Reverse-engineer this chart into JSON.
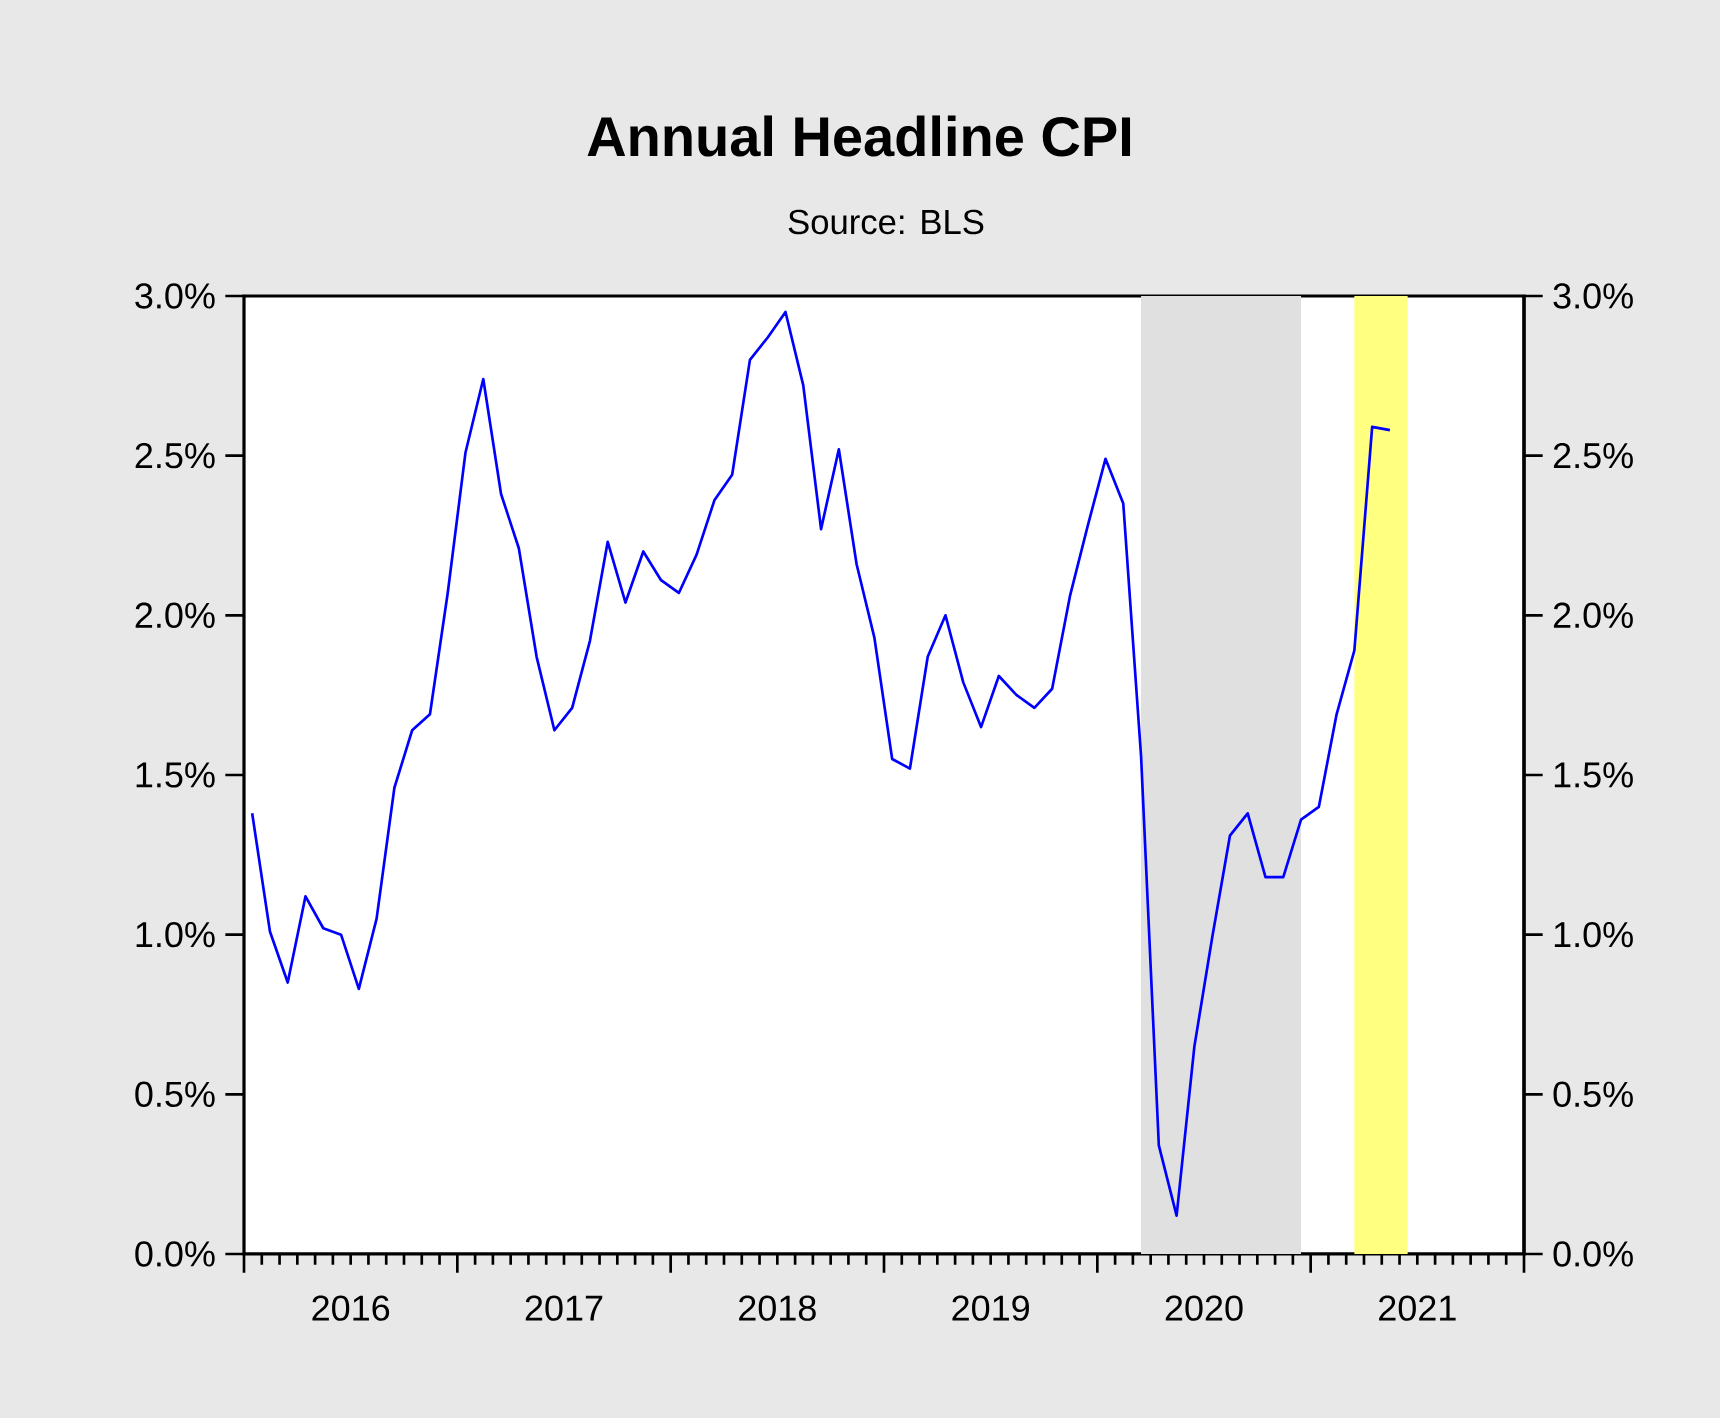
{
  "chart_data": {
    "type": "line",
    "title": "Annual Headline CPI",
    "annotations": [
      "Source: BLS"
    ],
    "x": [
      "2016-01-15",
      "2016-02-15",
      "2016-03-15",
      "2016-04-15",
      "2016-05-15",
      "2016-06-15",
      "2016-07-15",
      "2016-08-15",
      "2016-09-15",
      "2016-10-15",
      "2016-11-15",
      "2016-12-15",
      "2017-01-15",
      "2017-02-15",
      "2017-03-15",
      "2017-04-15",
      "2017-05-15",
      "2017-06-15",
      "2017-07-15",
      "2017-08-15",
      "2017-09-15",
      "2017-10-15",
      "2017-11-15",
      "2017-12-15",
      "2018-01-15",
      "2018-02-15",
      "2018-03-15",
      "2018-04-15",
      "2018-05-15",
      "2018-06-15",
      "2018-07-15",
      "2018-08-15",
      "2018-09-15",
      "2018-10-15",
      "2018-11-15",
      "2018-12-15",
      "2019-01-15",
      "2019-02-15",
      "2019-03-15",
      "2019-04-15",
      "2019-05-15",
      "2019-06-15",
      "2019-07-15",
      "2019-08-15",
      "2019-09-15",
      "2019-10-15",
      "2019-11-15",
      "2019-12-15",
      "2020-01-15",
      "2020-02-15",
      "2020-03-15",
      "2020-04-15",
      "2020-05-15",
      "2020-06-15",
      "2020-07-15",
      "2020-08-15",
      "2020-09-15",
      "2020-10-15",
      "2020-11-15",
      "2020-12-15",
      "2021-01-15",
      "2021-02-15",
      "2021-03-15",
      "2021-04-15",
      "2021-05-15"
    ],
    "series": [
      {
        "color": "#0000ff",
        "values": [
          1.38,
          1.01,
          0.85,
          1.12,
          1.02,
          1.0,
          0.83,
          1.05,
          1.46,
          1.64,
          1.69,
          2.07,
          2.51,
          2.74,
          2.38,
          2.21,
          1.87,
          1.64,
          1.71,
          1.92,
          2.23,
          2.04,
          2.2,
          2.11,
          2.07,
          2.19,
          2.36,
          2.44,
          2.8,
          2.87,
          2.95,
          2.72,
          2.27,
          2.52,
          2.16,
          1.93,
          1.55,
          1.52,
          1.87,
          2.0,
          1.79,
          1.65,
          1.81,
          1.75,
          1.71,
          1.77,
          2.06,
          2.28,
          2.49,
          2.35,
          1.56,
          0.34,
          0.12,
          0.65,
          0.99,
          1.31,
          1.38,
          1.18,
          1.18,
          1.36,
          1.4,
          1.69,
          1.89,
          2.59,
          2.58
        ]
      }
    ],
    "xlim": [
      "2016-01",
      "2022-01"
    ],
    "xticks": [
      {
        "value": "2016-01",
        "label": null
      },
      {
        "value": "2017-01",
        "label": null
      },
      {
        "value": "2018-01",
        "label": null
      },
      {
        "value": "2019-01",
        "label": null
      },
      {
        "value": "2020-01",
        "label": null
      },
      {
        "value": "2021-01",
        "label": null
      },
      {
        "value": "2022-01",
        "label": null
      },
      {
        "value": "2016-07",
        "label": "2016"
      },
      {
        "value": "2017-07",
        "label": "2017"
      },
      {
        "value": "2018-07",
        "label": "2018"
      },
      {
        "value": "2019-07",
        "label": "2019"
      },
      {
        "value": "2020-07",
        "label": "2020"
      },
      {
        "value": "2021-07",
        "label": "2021"
      }
    ],
    "ylim": [
      0,
      3
    ],
    "yticks": [
      {
        "value": 0,
        "label": "0.0%"
      },
      {
        "value": 0.5,
        "label": "0.5%"
      },
      {
        "value": 1,
        "label": "1.0%"
      },
      {
        "value": 1.5,
        "label": "1.5%"
      },
      {
        "value": 2,
        "label": "2.0%"
      },
      {
        "value": 2.5,
        "label": "2.5%"
      },
      {
        "value": 3,
        "label": "3.0%"
      }
    ],
    "y2lim": [
      0,
      3
    ],
    "y2ticks": [
      {
        "value": 0,
        "label": "0.0%"
      },
      {
        "value": 0.5,
        "label": "0.5%"
      },
      {
        "value": 1,
        "label": "1.0%"
      },
      {
        "value": 1.5,
        "label": "1.5%"
      },
      {
        "value": 2,
        "label": "2.0%"
      },
      {
        "value": 2.5,
        "label": "2.5%"
      },
      {
        "value": 3,
        "label": "3.0%"
      }
    ],
    "bands": [
      {
        "axis": "x",
        "from": "2020-03-15",
        "to": "2020-12-15",
        "color": "#e0e0e0"
      },
      {
        "axis": "x",
        "from": "2021-03-15",
        "to": "2021-06-15",
        "color": "#ffff80"
      }
    ],
    "grid": false,
    "marker": "none",
    "line_style": "solid"
  }
}
